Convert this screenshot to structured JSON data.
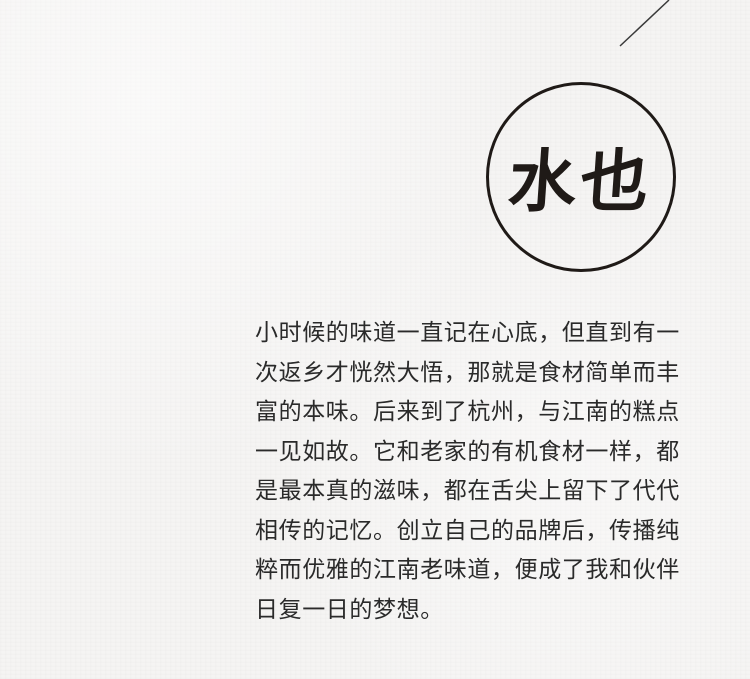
{
  "seal": {
    "text": "水也"
  },
  "story": {
    "lines": [
      "小时候的味道一直记在心底，但直到有一",
      "次返乡才恍然大悟，那就是食材简单而丰",
      "富的本味。后来到了杭州，与江南的糕点",
      "一见如故。它和老家的有机食材一样，都",
      "是最本真的滋味，都在舌尖上留下了代代",
      "相传的记忆。创立自己的品牌后，传播纯",
      "粹而优雅的江南老味道，便成了我和伙伴",
      "日复一日的梦想。"
    ]
  }
}
